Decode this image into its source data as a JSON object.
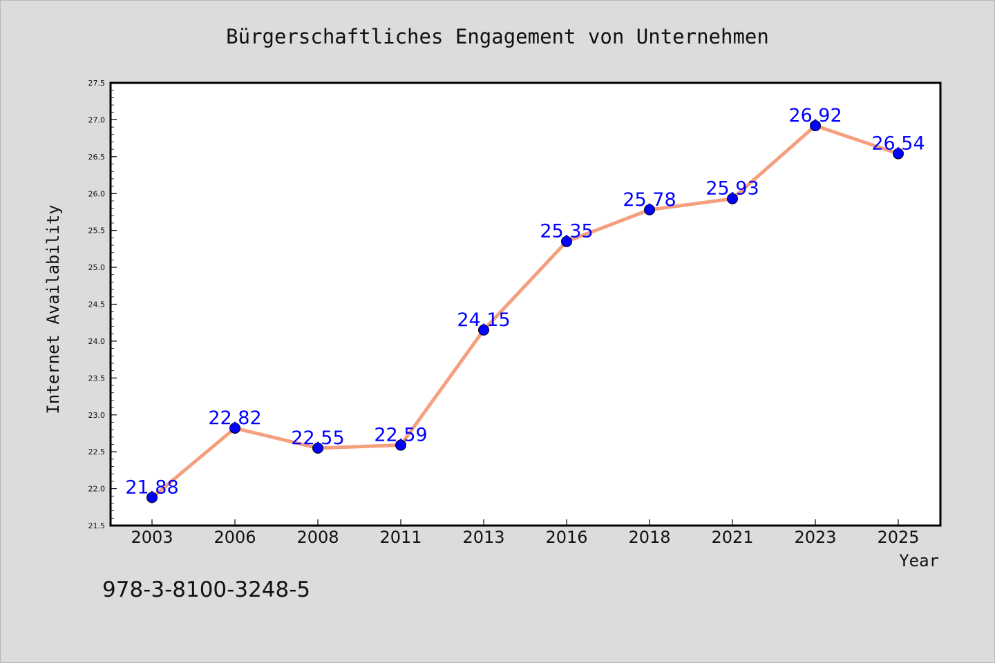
{
  "chart_data": {
    "type": "line",
    "title": "Bürgerschaftliches Engagement von Unternehmen",
    "xlabel": "Year",
    "ylabel": "Internet Availability",
    "categories": [
      "2003",
      "2006",
      "2008",
      "2011",
      "2013",
      "2016",
      "2018",
      "2021",
      "2023",
      "2025"
    ],
    "series": [
      {
        "values": [
          21.88,
          22.82,
          22.55,
          22.59,
          24.15,
          25.35,
          25.78,
          25.93,
          26.92,
          26.54
        ],
        "data_labels": [
          "21.88",
          "22.82",
          "22.55",
          "22.59",
          "24.15",
          "25.35",
          "25.78",
          "25.93",
          "26.92",
          "26.54"
        ],
        "line_color": "#f4a07e",
        "marker_color": "#0000ff"
      }
    ],
    "ylim": [
      21.5,
      27.5
    ],
    "yticks": [
      "21.5",
      "22.0",
      "22.5",
      "23.0",
      "23.5",
      "24.0",
      "24.5",
      "25.0",
      "25.5",
      "26.0",
      "26.5",
      "27.0",
      "27.5"
    ],
    "grid": false,
    "legend": "none"
  },
  "footer": {
    "isbn": "978-3-8100-3248-5"
  },
  "colors": {
    "background": "#dcdcdc",
    "plot_background": "#ffffff",
    "line": "#f4a07e",
    "marker": "#0000ff",
    "data_label": "#0000ff"
  }
}
